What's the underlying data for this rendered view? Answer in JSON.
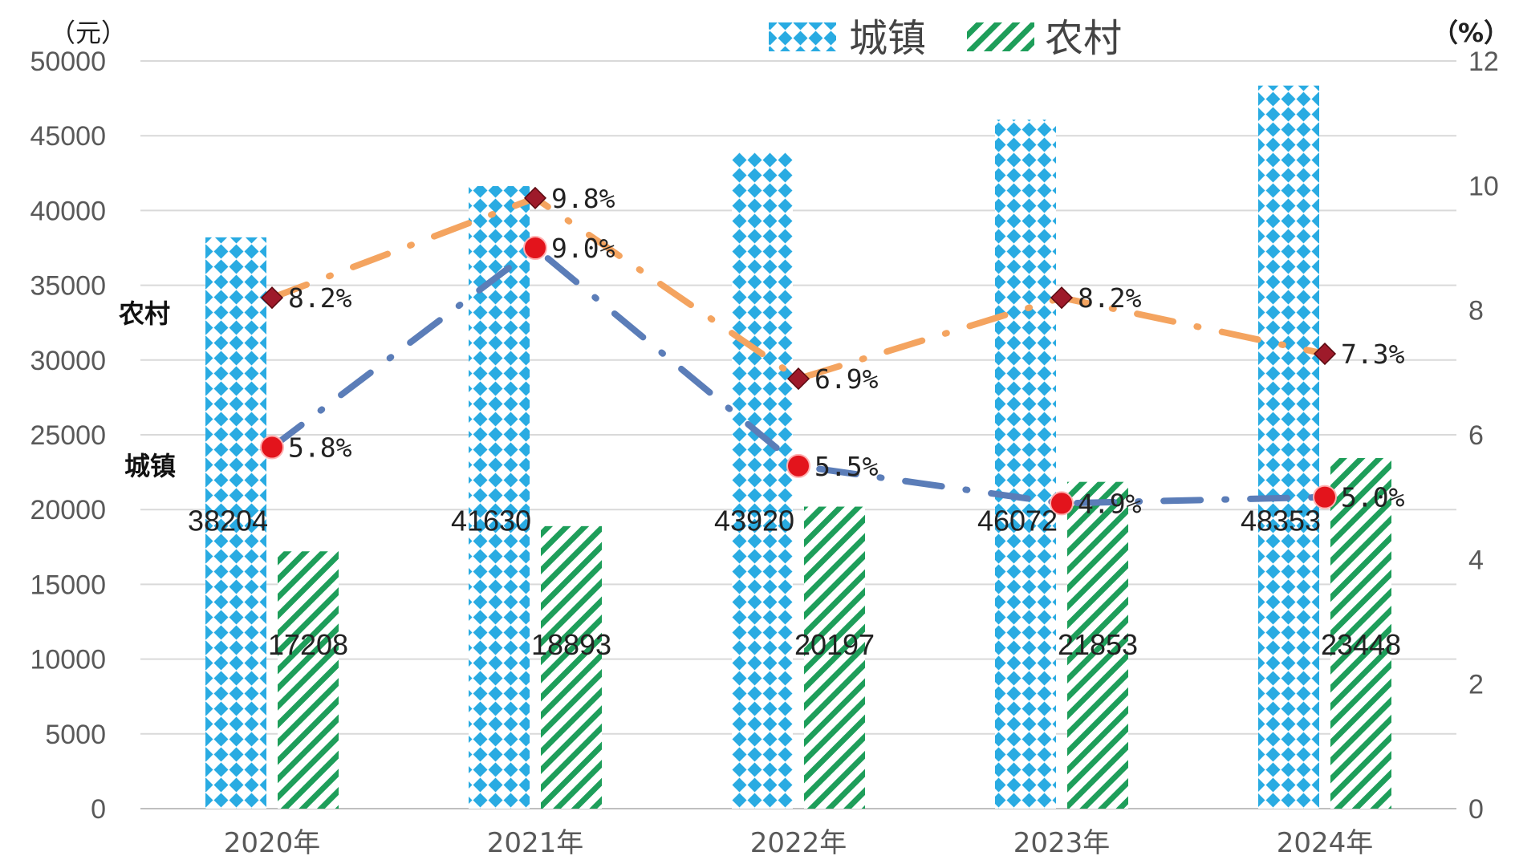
{
  "chart_data": {
    "type": "bar",
    "categories": [
      "2020年",
      "2021年",
      "2022年",
      "2023年",
      "2024年"
    ],
    "y_left_unit": "（元）",
    "y_right_unit": "（%）",
    "y_left_range": [
      0,
      50000
    ],
    "y_left_ticks": [
      "0",
      "5000",
      "10000",
      "15000",
      "20000",
      "25000",
      "30000",
      "35000",
      "40000",
      "45000",
      "50000"
    ],
    "y_right_range": [
      0,
      12
    ],
    "y_right_ticks": [
      "0",
      "2",
      "4",
      "6",
      "8",
      "10",
      "12"
    ],
    "legend": [
      "城镇",
      "农村"
    ],
    "legend_position": "top-center",
    "grid": true,
    "bar_series": [
      {
        "name": "城镇",
        "values": [
          38204,
          41630,
          43920,
          46072,
          48353
        ],
        "labels": [
          "38204",
          "41630",
          "43920",
          "46072",
          "48353"
        ],
        "color": "#29ABE2"
      },
      {
        "name": "农村",
        "values": [
          17208,
          18893,
          20197,
          21853,
          23448
        ],
        "labels": [
          "17208",
          "18893",
          "20197",
          "21853",
          "23448"
        ],
        "color": "#1E9E5A"
      }
    ],
    "line_series": [
      {
        "name": "农村",
        "values": [
          8.2,
          9.8,
          6.9,
          8.2,
          7.3
        ],
        "labels": [
          "8.2%",
          "9.8%",
          "6.9%",
          "8.2%",
          "7.3%"
        ],
        "line_color": "#F4A460",
        "marker_color": "#9E1A2A",
        "marker": "diamond"
      },
      {
        "name": "城镇",
        "values": [
          5.8,
          9.0,
          5.5,
          4.9,
          5.0
        ],
        "labels": [
          "5.8%",
          "9.0%",
          "5.5%",
          "4.9%",
          "5.0%"
        ],
        "line_color": "#5B7DB8",
        "marker_color": "#E3141C",
        "marker": "circle"
      }
    ]
  }
}
